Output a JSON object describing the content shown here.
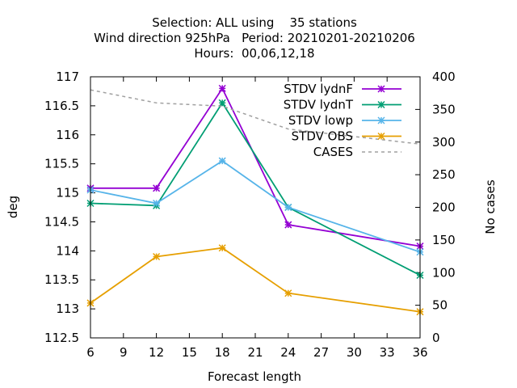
{
  "chart_data": {
    "type": "line",
    "title_lines": [
      "Selection: ALL using    35 stations",
      "Wind direction 925hPa   Period: 20210201-20210206",
      "Hours:  00,06,12,18"
    ],
    "xlabel": "Forecast length",
    "ylabel": "deg",
    "y2label": "No cases",
    "xlim": [
      6,
      36
    ],
    "ylim": [
      112.5,
      117
    ],
    "y2lim": [
      0,
      400
    ],
    "xticks": [
      6,
      9,
      12,
      15,
      18,
      21,
      24,
      27,
      30,
      33,
      36
    ],
    "yticks": [
      "112.5",
      "113",
      "113.5",
      "114",
      "114.5",
      "115",
      "115.5",
      "116",
      "116.5",
      "117"
    ],
    "y2ticks": [
      0,
      50,
      100,
      150,
      200,
      250,
      300,
      350,
      400
    ],
    "legend_position": "top-right",
    "x": [
      6,
      12,
      18,
      24,
      36
    ],
    "series": [
      {
        "name": "STDV lydnF",
        "color": "#9400d3",
        "axis": "y",
        "dash": false,
        "marker": true,
        "values": [
          115.08,
          115.08,
          116.8,
          114.45,
          114.08
        ]
      },
      {
        "name": "STDV lydnT",
        "color": "#009e73",
        "axis": "y",
        "dash": false,
        "marker": true,
        "values": [
          114.82,
          114.78,
          116.55,
          114.75,
          113.58
        ]
      },
      {
        "name": "STDV lowp",
        "color": "#56b4e9",
        "axis": "y",
        "dash": false,
        "marker": true,
        "values": [
          115.05,
          114.82,
          115.55,
          114.75,
          113.98
        ]
      },
      {
        "name": "STDV OBS",
        "color": "#e69f00",
        "axis": "y",
        "dash": false,
        "marker": true,
        "values": [
          113.1,
          113.9,
          114.05,
          113.27,
          112.95
        ]
      },
      {
        "name": "CASES",
        "color": "#a0a0a0",
        "axis": "y2",
        "dash": true,
        "marker": false,
        "values": [
          380,
          360,
          355,
          320,
          297
        ]
      }
    ]
  }
}
